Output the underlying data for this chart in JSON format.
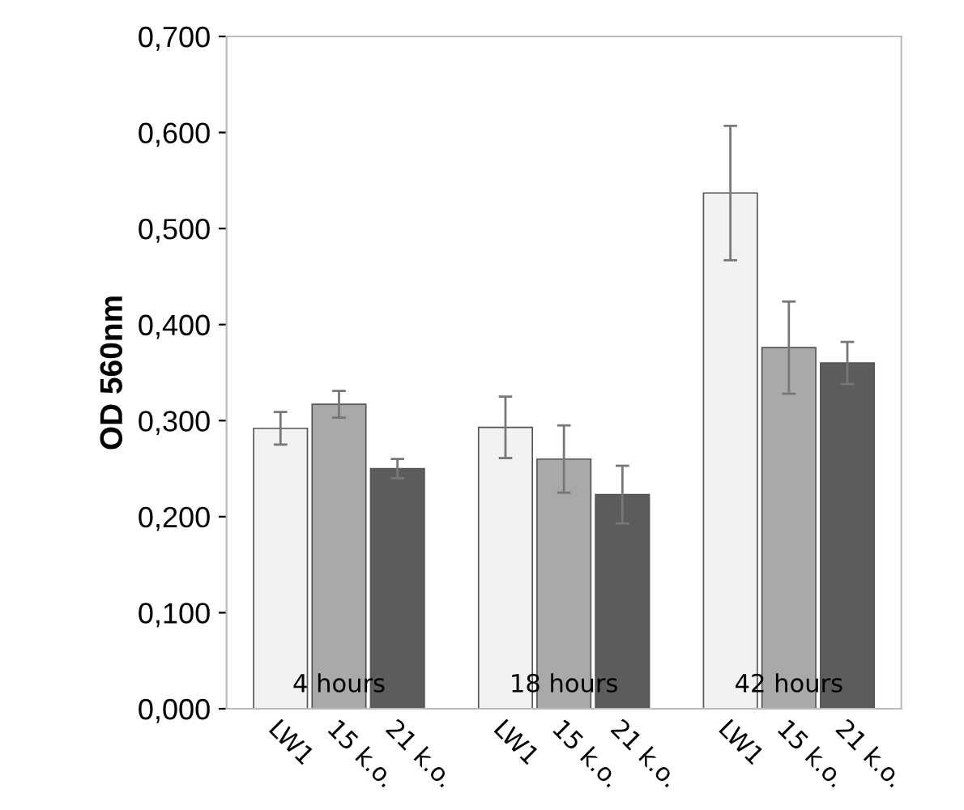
{
  "chart_data": {
    "type": "bar",
    "ylabel": "OD 560nm",
    "categories": [
      "4 hours",
      "18 hours",
      "42 hours"
    ],
    "series": [
      {
        "name": "LW1",
        "color": "#f2f2f2",
        "values": [
          0.292,
          0.293,
          0.537
        ],
        "errors": [
          0.017,
          0.032,
          0.07
        ]
      },
      {
        "name": "15 k.o.",
        "color": "#a9a9a9",
        "values": [
          0.317,
          0.26,
          0.376
        ],
        "errors": [
          0.014,
          0.035,
          0.048
        ]
      },
      {
        "name": "21 k.o.",
        "color": "#5c5c5c",
        "values": [
          0.25,
          0.223,
          0.36
        ],
        "errors": [
          0.01,
          0.03,
          0.022
        ]
      }
    ],
    "ylim": [
      0,
      0.7
    ],
    "yticks": [
      {
        "value": 0,
        "label": "0,000"
      },
      {
        "value": 0.1,
        "label": "0,100"
      },
      {
        "value": 0.2,
        "label": "0,200"
      },
      {
        "value": 0.3,
        "label": "0,300"
      },
      {
        "value": 0.4,
        "label": "0,400"
      },
      {
        "value": 0.5,
        "label": "0,500"
      },
      {
        "value": 0.6,
        "label": "0,600"
      },
      {
        "value": 0.7,
        "label": "0,700"
      }
    ],
    "legend": false,
    "grid": false
  }
}
